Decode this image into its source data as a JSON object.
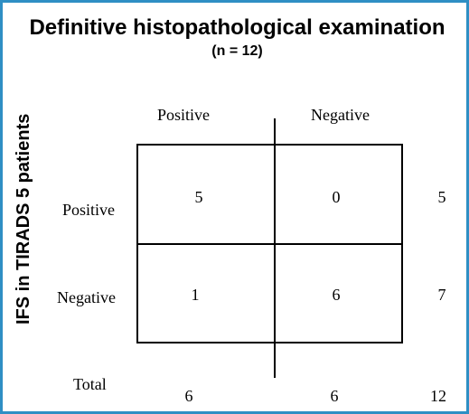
{
  "title": "Definitive histopathological examination",
  "subtitle": "(n = 12)",
  "y_axis_label": "IFS in TIRADS 5 patients",
  "columns": {
    "positive": "Positive",
    "negative": "Negative"
  },
  "rows": {
    "positive": {
      "label": "Positive",
      "pos": "5",
      "neg": "0",
      "total": "5"
    },
    "negative": {
      "label": "Negative",
      "pos": "1",
      "neg": "6",
      "total": "7"
    }
  },
  "totals": {
    "label": "Total",
    "pos": "6",
    "neg": "6",
    "all": "12"
  },
  "colors": {
    "frame_border": "#2f8fc4",
    "lines": "#000000"
  }
}
